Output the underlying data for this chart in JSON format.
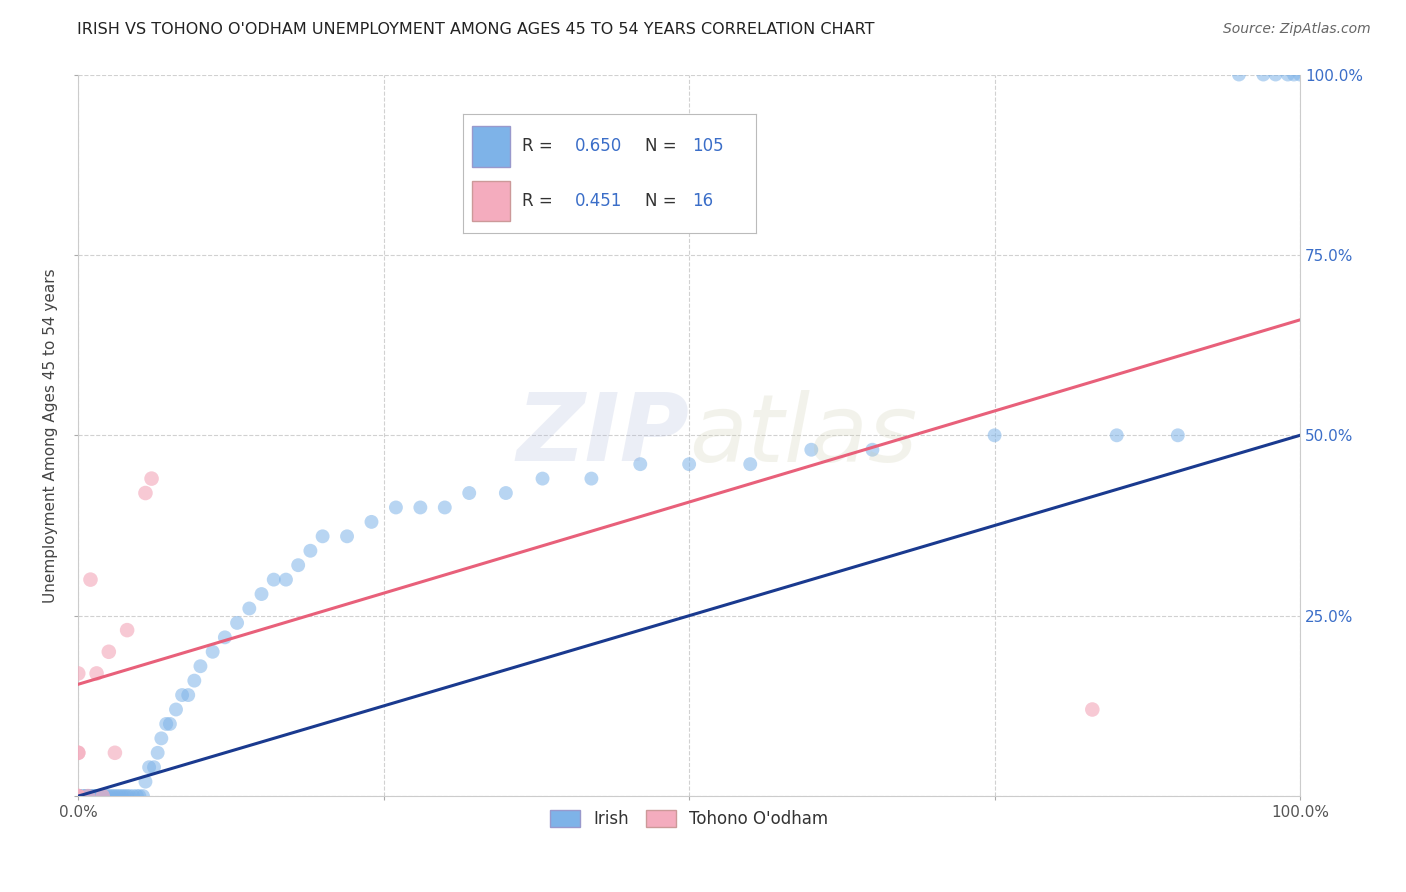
{
  "title": "IRISH VS TOHONO O'ODHAM UNEMPLOYMENT AMONG AGES 45 TO 54 YEARS CORRELATION CHART",
  "source": "Source: ZipAtlas.com",
  "ylabel": "Unemployment Among Ages 45 to 54 years",
  "xlim": [
    0,
    1
  ],
  "ylim": [
    0,
    1
  ],
  "R_irish": 0.65,
  "N_irish": 105,
  "R_tohono": 0.451,
  "N_tohono": 16,
  "blue_scatter_color": "#7EB3E8",
  "pink_scatter_color": "#F4ACBE",
  "blue_line_color": "#1A3A8F",
  "pink_line_color": "#E8607A",
  "legend_label_irish": "Irish",
  "legend_label_tohono": "Tohono O'odham",
  "irish_x": [
    0.0,
    0.0,
    0.0,
    0.0,
    0.0,
    0.0,
    0.0,
    0.0,
    0.0,
    0.0,
    0.0,
    0.0,
    0.0,
    0.0,
    0.0,
    0.0,
    0.0,
    0.0,
    0.0,
    0.0,
    0.0,
    0.0,
    0.0,
    0.0,
    0.0,
    0.0,
    0.0,
    0.0,
    0.0,
    0.0,
    0.004,
    0.005,
    0.006,
    0.007,
    0.008,
    0.009,
    0.01,
    0.011,
    0.012,
    0.013,
    0.015,
    0.016,
    0.017,
    0.018,
    0.02,
    0.022,
    0.024,
    0.026,
    0.028,
    0.03,
    0.032,
    0.034,
    0.036,
    0.038,
    0.04,
    0.042,
    0.045,
    0.048,
    0.05,
    0.053,
    0.055,
    0.058,
    0.062,
    0.065,
    0.068,
    0.072,
    0.075,
    0.08,
    0.085,
    0.09,
    0.095,
    0.1,
    0.11,
    0.12,
    0.13,
    0.14,
    0.15,
    0.16,
    0.17,
    0.18,
    0.19,
    0.2,
    0.22,
    0.24,
    0.26,
    0.28,
    0.3,
    0.32,
    0.35,
    0.38,
    0.42,
    0.46,
    0.5,
    0.55,
    0.6,
    0.65,
    0.75,
    0.85,
    0.9,
    0.95,
    0.97,
    0.98,
    0.99,
    0.995,
    1.0
  ],
  "irish_y": [
    0.0,
    0.0,
    0.0,
    0.0,
    0.0,
    0.0,
    0.0,
    0.0,
    0.0,
    0.0,
    0.0,
    0.0,
    0.0,
    0.0,
    0.0,
    0.0,
    0.0,
    0.0,
    0.0,
    0.0,
    0.0,
    0.0,
    0.0,
    0.0,
    0.0,
    0.0,
    0.0,
    0.0,
    0.0,
    0.0,
    0.0,
    0.0,
    0.0,
    0.0,
    0.0,
    0.0,
    0.0,
    0.0,
    0.0,
    0.0,
    0.0,
    0.0,
    0.0,
    0.0,
    0.0,
    0.0,
    0.0,
    0.0,
    0.0,
    0.0,
    0.0,
    0.0,
    0.0,
    0.0,
    0.0,
    0.0,
    0.0,
    0.0,
    0.0,
    0.0,
    0.02,
    0.04,
    0.04,
    0.06,
    0.08,
    0.1,
    0.1,
    0.12,
    0.14,
    0.14,
    0.16,
    0.18,
    0.2,
    0.22,
    0.24,
    0.26,
    0.28,
    0.3,
    0.3,
    0.32,
    0.34,
    0.36,
    0.36,
    0.38,
    0.4,
    0.4,
    0.4,
    0.42,
    0.42,
    0.44,
    0.44,
    0.46,
    0.46,
    0.46,
    0.48,
    0.48,
    0.5,
    0.5,
    0.5,
    1.0,
    1.0,
    1.0,
    1.0,
    1.0,
    1.0
  ],
  "tohono_x": [
    0.0,
    0.0,
    0.0,
    0.0,
    0.0,
    0.0,
    0.008,
    0.01,
    0.015,
    0.02,
    0.025,
    0.03,
    0.04,
    0.055,
    0.06,
    0.83
  ],
  "tohono_y": [
    0.0,
    0.0,
    0.0,
    0.06,
    0.06,
    0.17,
    0.0,
    0.3,
    0.17,
    0.0,
    0.2,
    0.06,
    0.23,
    0.42,
    0.44,
    0.12
  ],
  "irish_line_x0": 0.0,
  "irish_line_y0": 0.0,
  "irish_line_x1": 1.0,
  "irish_line_y1": 0.5,
  "tohono_line_x0": 0.0,
  "tohono_line_y0": 0.155,
  "tohono_line_x1": 1.0,
  "tohono_line_y1": 0.66
}
